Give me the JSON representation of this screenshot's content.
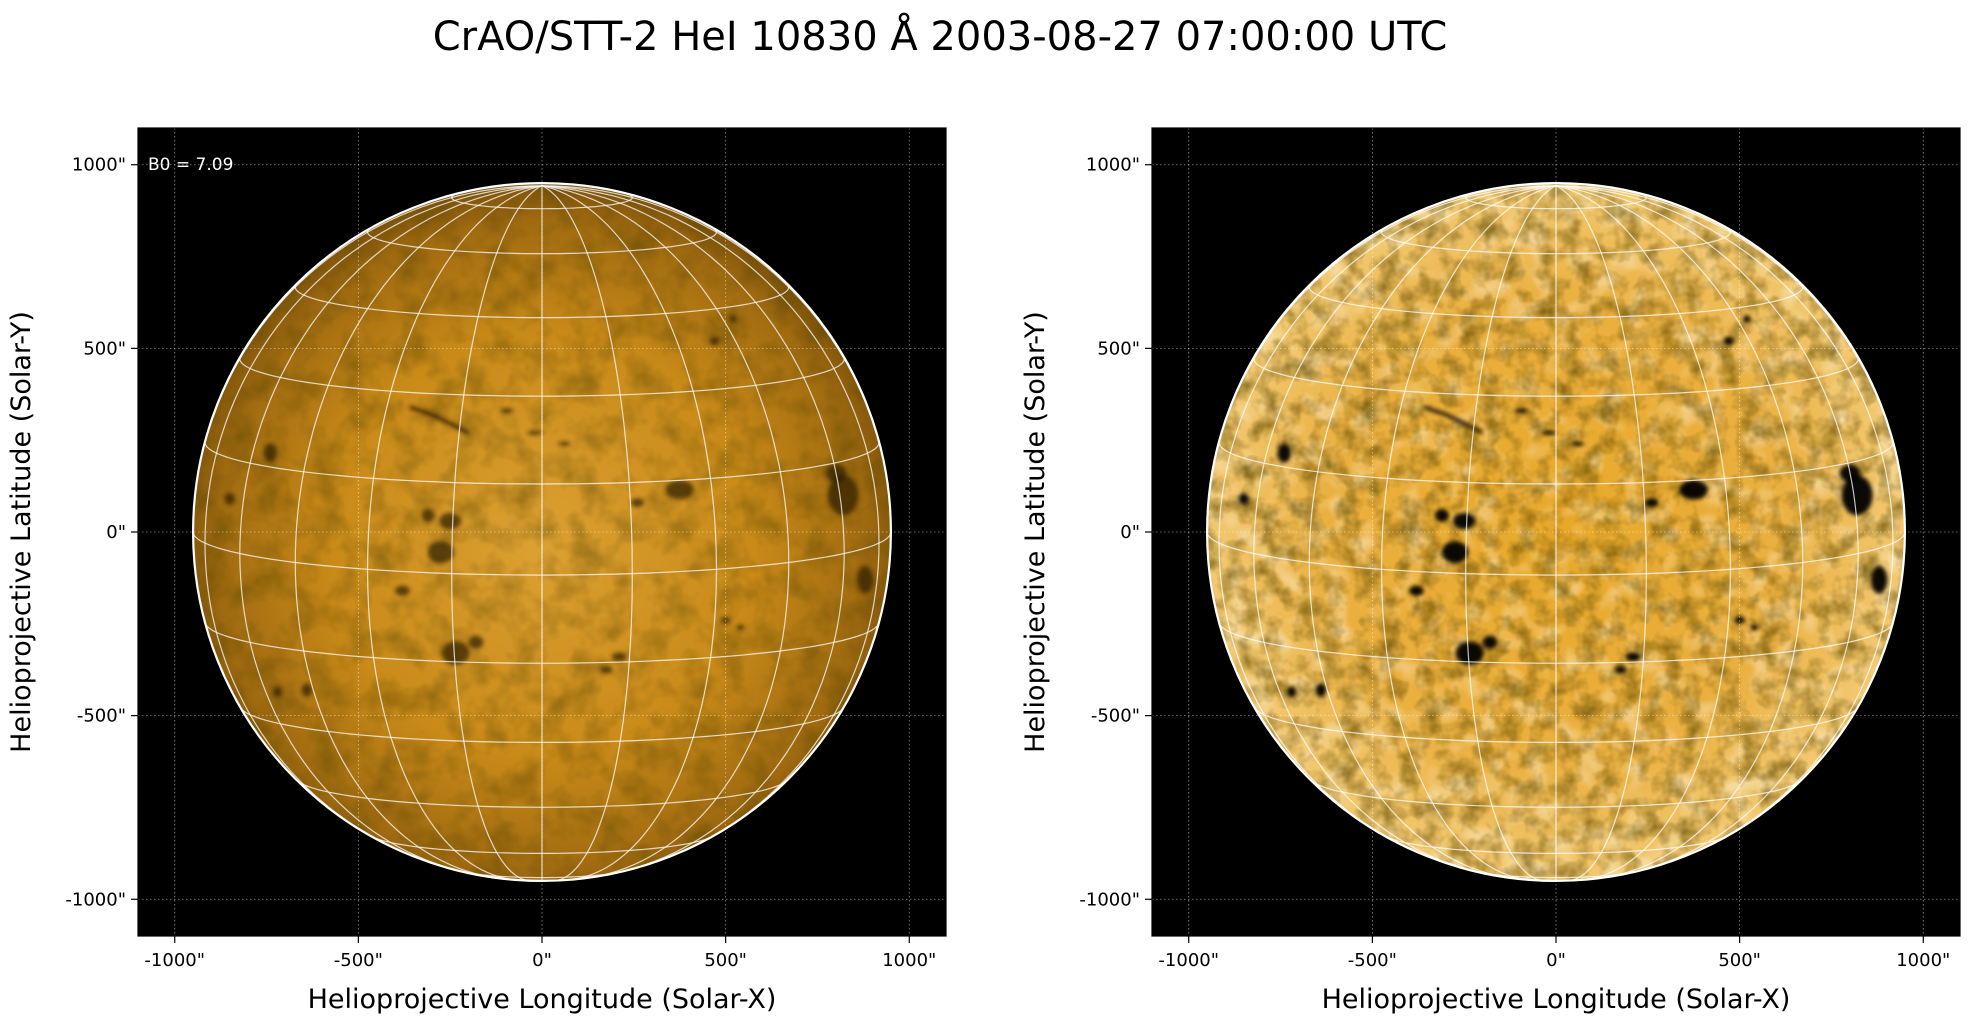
{
  "figure": {
    "title": "CrAO/STT-2 HeI 10830 Å 2003-08-27 07:00:00 UTC"
  },
  "panels": [
    {
      "id": "original",
      "annotation": "B0 = 7.09",
      "xlabel": "Helioprojective Longitude (Solar-X)",
      "ylabel": "Helioprojective Latitude (Solar-Y)",
      "x_ticks": [
        "-1000\"",
        "-500\"",
        "0\"",
        "500\"",
        "1000\""
      ],
      "y_ticks": [
        "1000\"",
        "500\"",
        "0\"",
        "-500\"",
        "-1000\""
      ],
      "contrast": "normal"
    },
    {
      "id": "enhanced",
      "annotation": "",
      "xlabel": "Helioprojective Longitude (Solar-X)",
      "ylabel": "Helioprojective Latitude (Solar-Y)",
      "x_ticks": [
        "-1000\"",
        "-500\"",
        "0\"",
        "500\"",
        "1000\""
      ],
      "y_ticks": [
        "1000\"",
        "500\"",
        "0\"",
        "-500\"",
        "-1000\""
      ],
      "contrast": "enhanced"
    }
  ],
  "colors": {
    "background": "#000000",
    "disk_center": "#d99a1c",
    "disk_limb": "#7a4e0a",
    "enhanced_center": "#f0b030",
    "enhanced_light": "#f7d488",
    "grid": "#ffffff",
    "feature_dark": "#2a1a05"
  }
}
